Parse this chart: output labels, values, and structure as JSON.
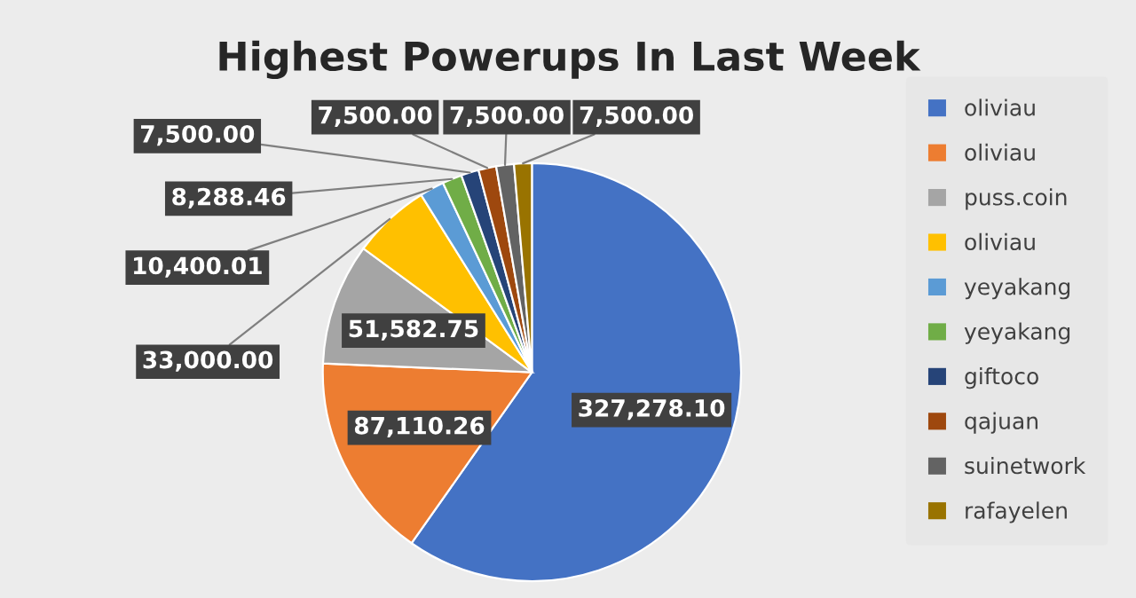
{
  "chart_data": {
    "type": "pie",
    "title": "Highest Powerups In Last Week",
    "categories": [
      "oliviau",
      "oliviau",
      "puss.coin",
      "oliviau",
      "yeyakang",
      "yeyakang",
      "giftoco",
      "qajuan",
      "suinetwork",
      "rafayelen"
    ],
    "values": [
      327278.1,
      87110.26,
      51582.75,
      33000.0,
      10400.01,
      8288.46,
      7500.0,
      7500.0,
      7500.0,
      7500.0
    ],
    "colors": [
      "#4472c4",
      "#ed7d31",
      "#a5a5a5",
      "#ffc000",
      "#5b9bd5",
      "#70ad47",
      "#264478",
      "#9e480e",
      "#636363",
      "#997300"
    ],
    "value_labels": [
      "327,278.10",
      "87,110.26",
      "51,582.75",
      "33,000.00",
      "10,400.01",
      "8,288.46",
      "7,500.00",
      "7,500.00",
      "7,500.00",
      "7,500.00"
    ],
    "legend": "right"
  }
}
